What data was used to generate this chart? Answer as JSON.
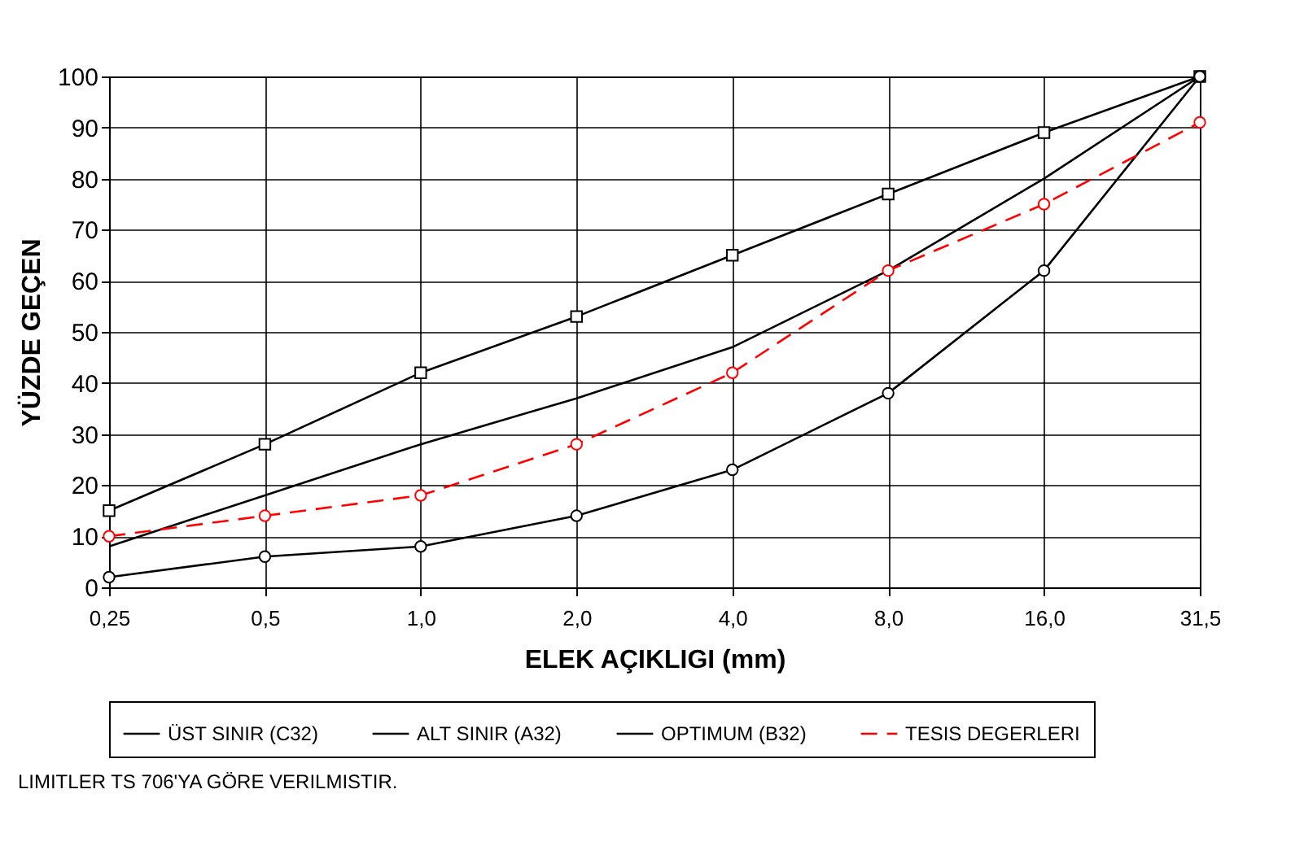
{
  "chart_data": {
    "type": "line",
    "xlabel": "ELEK AÇIKLIGI (mm)",
    "ylabel": "YÜZDE GEÇEN",
    "categories": [
      "0,25",
      "0,5",
      "1,0",
      "2,0",
      "4,0",
      "8,0",
      "16,0",
      "31,5"
    ],
    "series": [
      {
        "name": "ÜST SINIR (C32)",
        "color": "#000000",
        "marker": "square",
        "line_style": "solid",
        "values": [
          15,
          28,
          42,
          53,
          65,
          77,
          89,
          100
        ]
      },
      {
        "name": "ALT SINIR (A32)",
        "color": "#000000",
        "marker": "circle",
        "line_style": "solid",
        "values": [
          2,
          6,
          8,
          14,
          23,
          38,
          62,
          100
        ]
      },
      {
        "name": "OPTIMUM (B32)",
        "color": "#000000",
        "marker": "none",
        "line_style": "solid",
        "values": [
          8,
          18,
          28,
          37,
          47,
          62,
          80,
          100
        ]
      },
      {
        "name": "TESIS DEGERLERI",
        "color": "#ff0000",
        "marker": "circle",
        "line_style": "dashed",
        "values": [
          10,
          14,
          18,
          28,
          42,
          62,
          75,
          91
        ]
      }
    ],
    "ylim": [
      0,
      100
    ],
    "yticks": [
      0,
      10,
      20,
      30,
      40,
      50,
      60,
      70,
      80,
      90,
      100
    ],
    "grid": true,
    "legend": "bottom",
    "annotations": [
      "LIMITLER TS 706'YA GÖRE VERILMISTIR."
    ]
  }
}
